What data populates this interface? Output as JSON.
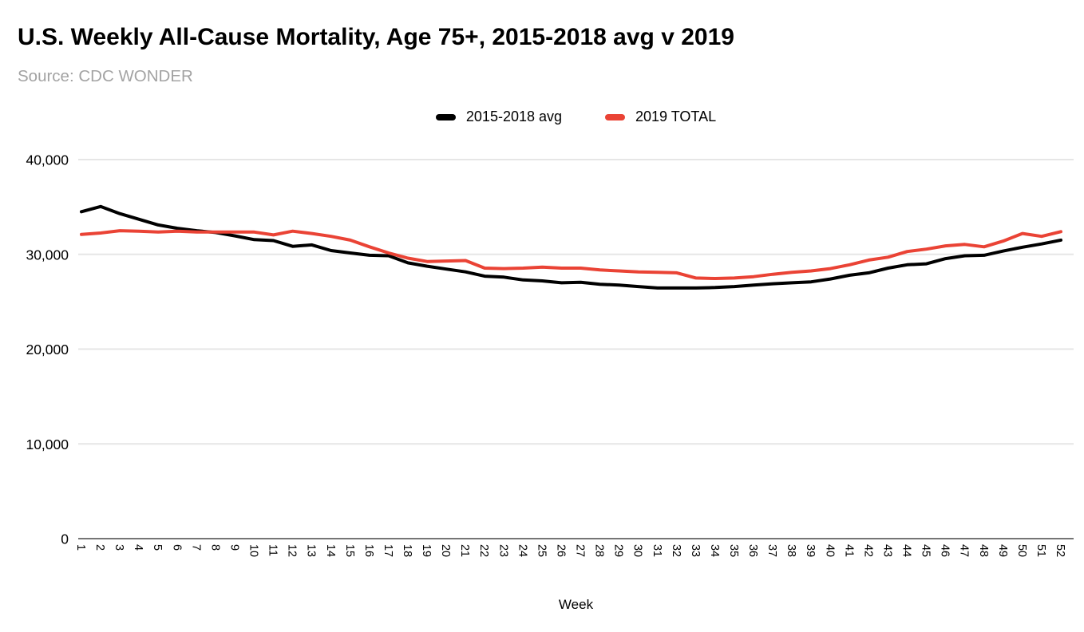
{
  "header": {
    "title": "U.S. Weekly All-Cause Mortality, Age 75+, 2015-2018 avg v 2019",
    "source": "Source: CDC WONDER"
  },
  "legend": {
    "items": [
      {
        "label": "2015-2018 avg",
        "color": "#000000"
      },
      {
        "label": "2019 TOTAL",
        "color": "#ea4335"
      }
    ]
  },
  "chart_data": {
    "type": "line",
    "title": "U.S. Weekly All-Cause Mortality, Age 75+, 2015-2018 avg v 2019",
    "subtitle": "Source: CDC WONDER",
    "xlabel": "Week",
    "ylabel": "",
    "ylim": [
      0,
      40000
    ],
    "grid": "horizontal",
    "legend_position": "top-center",
    "y_ticks": [
      {
        "value": 0,
        "label": "0"
      },
      {
        "value": 10000,
        "label": "10,000"
      },
      {
        "value": 20000,
        "label": "20,000"
      },
      {
        "value": 30000,
        "label": "30,000"
      },
      {
        "value": 40000,
        "label": "40,000"
      }
    ],
    "categories": [
      "1",
      "2",
      "3",
      "4",
      "5",
      "6",
      "7",
      "8",
      "9",
      "10",
      "11",
      "12",
      "13",
      "14",
      "15",
      "16",
      "17",
      "18",
      "19",
      "20",
      "21",
      "22",
      "23",
      "24",
      "25",
      "26",
      "27",
      "28",
      "29",
      "30",
      "31",
      "32",
      "33",
      "34",
      "35",
      "36",
      "37",
      "38",
      "39",
      "40",
      "41",
      "42",
      "43",
      "44",
      "45",
      "46",
      "47",
      "48",
      "49",
      "50",
      "51",
      "52"
    ],
    "series": [
      {
        "name": "2015-2018 avg",
        "color": "#000000",
        "values": [
          34500,
          35050,
          34300,
          33700,
          33100,
          32750,
          32500,
          32300,
          31950,
          31550,
          31450,
          30850,
          31000,
          30400,
          30150,
          29900,
          29850,
          29100,
          28750,
          28450,
          28150,
          27700,
          27600,
          27300,
          27200,
          27000,
          27050,
          26850,
          26750,
          26600,
          26450,
          26450,
          26450,
          26500,
          26600,
          26750,
          26900,
          27000,
          27100,
          27400,
          27800,
          28050,
          28550,
          28900,
          29000,
          29550,
          29850,
          29900,
          30350,
          30750,
          31100,
          31500
        ]
      },
      {
        "name": "2019 TOTAL",
        "color": "#ea4335",
        "values": [
          32100,
          32250,
          32500,
          32450,
          32350,
          32450,
          32350,
          32350,
          32350,
          32350,
          32050,
          32450,
          32200,
          31900,
          31500,
          30800,
          30150,
          29600,
          29250,
          29300,
          29350,
          28550,
          28500,
          28550,
          28650,
          28550,
          28550,
          28350,
          28250,
          28150,
          28100,
          28050,
          27500,
          27450,
          27500,
          27650,
          27900,
          28100,
          28250,
          28500,
          28900,
          29400,
          29700,
          30300,
          30550,
          30900,
          31050,
          30800,
          31400,
          32200,
          31900,
          32400
        ]
      }
    ],
    "colors": {
      "gridline": "#e6e6e6",
      "zero_axis": "#757575",
      "tick_label": "#000000"
    }
  }
}
